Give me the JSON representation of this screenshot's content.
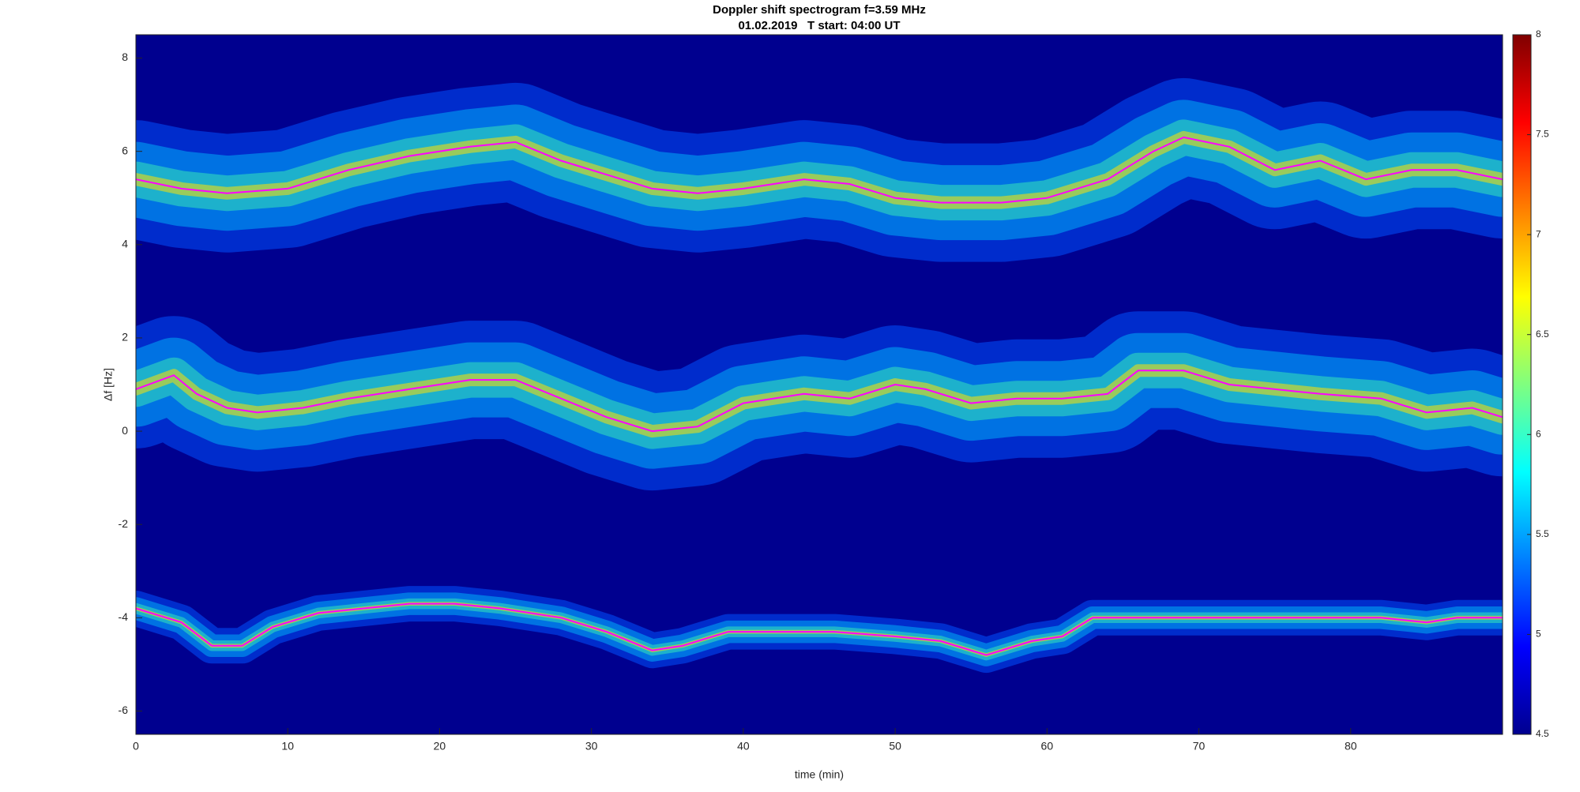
{
  "chart_data": {
    "type": "spectrogram",
    "title": "Doppler shift spectrogram f=3.59 MHz",
    "subtitle": "01.02.2019   T start: 04:00 UT",
    "x_label": "time (min)",
    "y_label": "Δf [Hz]",
    "xlim": [
      0,
      90
    ],
    "xticks": [
      0,
      10,
      20,
      30,
      40,
      50,
      60,
      70,
      80
    ],
    "ylim": [
      -6.5,
      8.5
    ],
    "yticks": [
      -6,
      -4,
      -2,
      0,
      2,
      4,
      6,
      8
    ],
    "clim": [
      4.5,
      8
    ],
    "cticks": [
      4.5,
      5,
      5.5,
      6,
      6.5,
      7,
      7.5,
      8
    ],
    "series": [
      {
        "color": "#ff00ff",
        "x": [
          0,
          3,
          6,
          10,
          14,
          18,
          22,
          25,
          28,
          31,
          34,
          37,
          40,
          44,
          47,
          50,
          53,
          57,
          60,
          64,
          67,
          69,
          72,
          75,
          78,
          81,
          84,
          87,
          90
        ],
        "values": [
          5.4,
          5.2,
          5.1,
          5.2,
          5.6,
          5.9,
          6.1,
          6.2,
          5.8,
          5.5,
          5.2,
          5.1,
          5.2,
          5.4,
          5.3,
          5.0,
          4.9,
          4.9,
          5.0,
          5.4,
          6.0,
          6.3,
          6.1,
          5.6,
          5.8,
          5.4,
          5.6,
          5.6,
          5.4
        ]
      },
      {
        "color": "#ff00ff",
        "x": [
          0,
          2.5,
          4,
          6,
          8,
          11,
          14,
          18,
          22,
          25,
          28,
          31,
          34,
          37,
          40,
          44,
          47,
          50,
          52,
          55,
          58,
          61,
          64,
          66,
          69,
          72,
          75,
          78,
          82,
          85,
          88,
          90
        ],
        "values": [
          0.9,
          1.2,
          0.8,
          0.5,
          0.4,
          0.5,
          0.7,
          0.9,
          1.1,
          1.1,
          0.7,
          0.3,
          0.0,
          0.1,
          0.6,
          0.8,
          0.7,
          1.0,
          0.9,
          0.6,
          0.7,
          0.7,
          0.8,
          1.3,
          1.3,
          1.0,
          0.9,
          0.8,
          0.7,
          0.4,
          0.5,
          0.3
        ]
      },
      {
        "color": "#ff00ff",
        "x": [
          0,
          3,
          5,
          7,
          9,
          12,
          15,
          18,
          21,
          24,
          28,
          31,
          34,
          36,
          39,
          43,
          46,
          50,
          53,
          56,
          59,
          61,
          63,
          66,
          70,
          74,
          78,
          82,
          85,
          87,
          90
        ],
        "values": [
          -3.8,
          -4.1,
          -4.6,
          -4.6,
          -4.2,
          -3.9,
          -3.8,
          -3.7,
          -3.7,
          -3.8,
          -4.0,
          -4.3,
          -4.7,
          -4.6,
          -4.3,
          -4.3,
          -4.3,
          -4.4,
          -4.5,
          -4.8,
          -4.5,
          -4.4,
          -4.0,
          -4.0,
          -4.0,
          -4.0,
          -4.0,
          -4.0,
          -4.1,
          -4.0,
          -4.0
        ]
      }
    ]
  }
}
